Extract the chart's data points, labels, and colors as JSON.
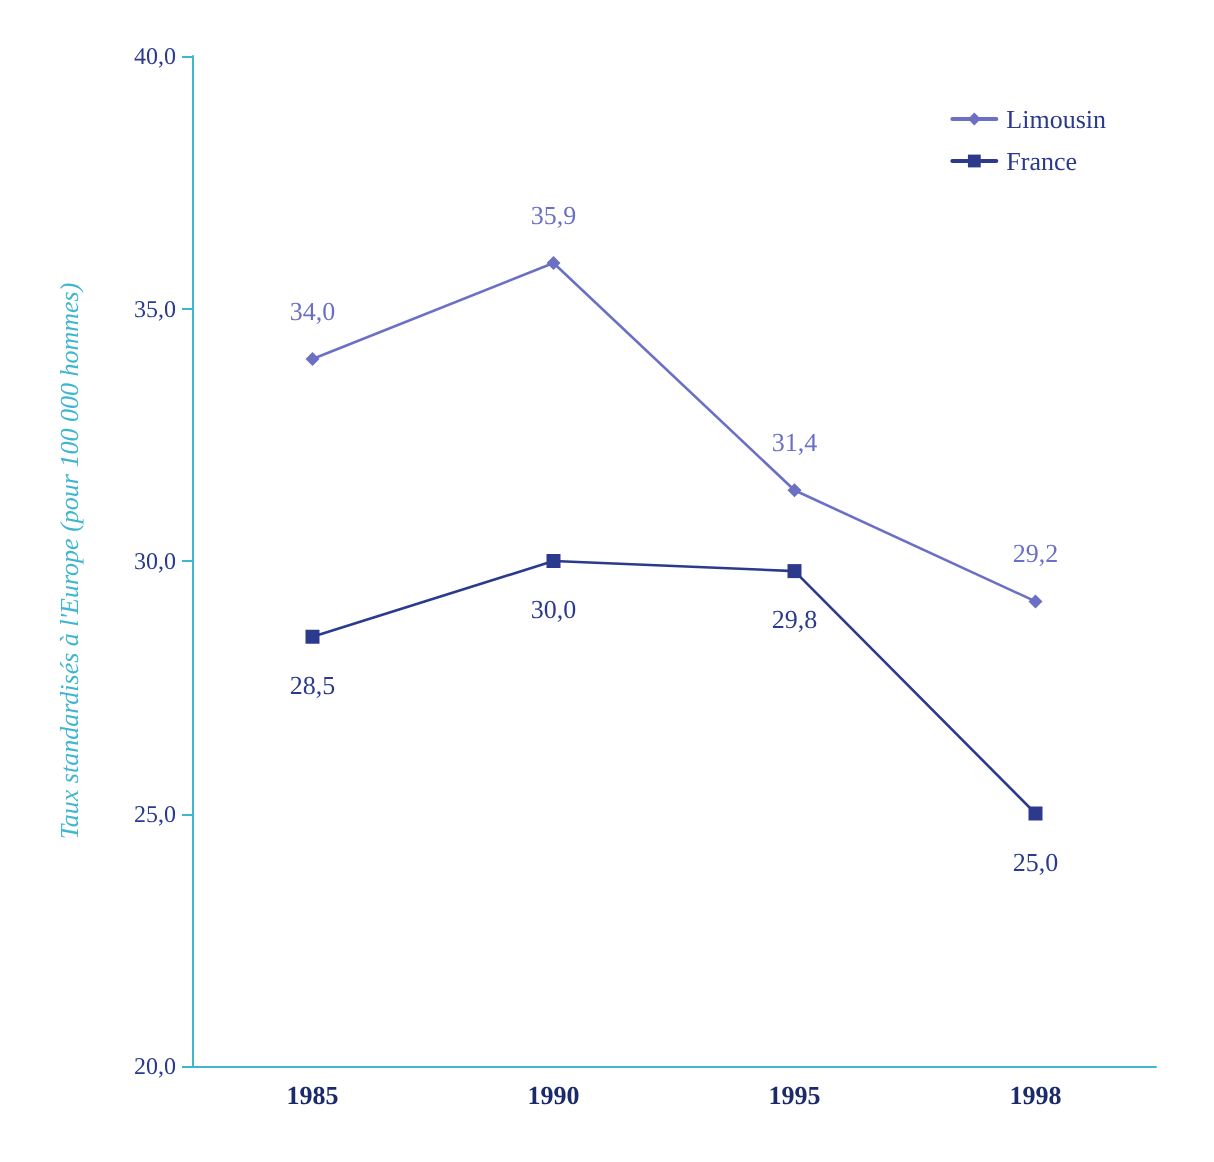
{
  "chart_data": {
    "type": "line",
    "ylabel": "Taux standardisés à l'Europe (pour 100 000 hommes)",
    "categories": [
      "1985",
      "1990",
      "1995",
      "1998"
    ],
    "series": [
      {
        "name": "Limousin",
        "color": "#6b70c4",
        "values": [
          34.0,
          35.9,
          31.4,
          29.2
        ],
        "value_labels": [
          "34,0",
          "35,9",
          "31,4",
          "29,2"
        ],
        "marker": "diamond"
      },
      {
        "name": "France",
        "color": "#2b3a8c",
        "values": [
          28.5,
          30.0,
          29.8,
          25.0
        ],
        "value_labels": [
          "28,5",
          "30,0",
          "29,8",
          "25,0"
        ],
        "marker": "square"
      }
    ],
    "ylim": [
      20,
      40
    ],
    "yticks": [
      {
        "value": 20,
        "label": "20,0"
      },
      {
        "value": 25,
        "label": "25,0"
      },
      {
        "value": 30,
        "label": "30,0"
      },
      {
        "value": 35,
        "label": "35,0"
      },
      {
        "value": 40,
        "label": "40,0"
      }
    ],
    "grid": false,
    "legend": "top right",
    "line_style": "solid"
  }
}
